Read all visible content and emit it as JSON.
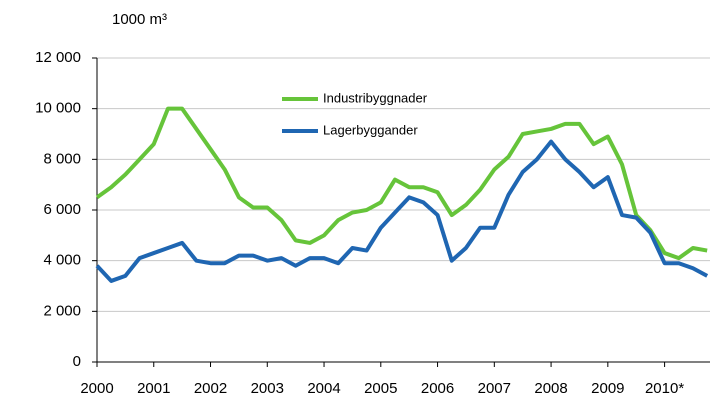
{
  "chart_data": {
    "type": "line",
    "y_unit_label": "1000 m³",
    "x": [
      2000,
      2000.25,
      2000.5,
      2000.75,
      2001,
      2001.25,
      2001.5,
      2001.75,
      2002,
      2002.25,
      2002.5,
      2002.75,
      2003,
      2003.25,
      2003.5,
      2003.75,
      2004,
      2004.25,
      2004.5,
      2004.75,
      2005,
      2005.25,
      2005.5,
      2005.75,
      2006,
      2006.25,
      2006.5,
      2006.75,
      2007,
      2007.25,
      2007.5,
      2007.75,
      2008,
      2008.25,
      2008.5,
      2008.75,
      2009,
      2009.25,
      2009.5,
      2009.75,
      2010,
      2010.25,
      2010.5,
      2010.75
    ],
    "series": [
      {
        "name": "Industribyggnader",
        "color": "#66c43a",
        "values": [
          6500,
          6900,
          7400,
          8000,
          8600,
          10000,
          10000,
          9200,
          8400,
          7600,
          6500,
          6100,
          6100,
          5600,
          4800,
          4700,
          5000,
          5600,
          5900,
          6000,
          6300,
          7200,
          6900,
          6900,
          6700,
          5800,
          6200,
          6800,
          7600,
          8100,
          9000,
          9100,
          9200,
          9400,
          9400,
          8600,
          8900,
          7800,
          5800,
          5200,
          4300,
          4100,
          4500,
          4400
        ]
      },
      {
        "name": "Lagerbyggander",
        "color": "#1f66b2",
        "values": [
          3800,
          3200,
          3400,
          4100,
          4300,
          4500,
          4700,
          4000,
          3900,
          3900,
          4200,
          4200,
          4000,
          4100,
          3800,
          4100,
          4100,
          3900,
          4500,
          4400,
          5300,
          5900,
          6500,
          6300,
          5800,
          4000,
          4500,
          5300,
          5300,
          6600,
          7500,
          8000,
          8700,
          8000,
          7500,
          6900,
          7300,
          5800,
          5700,
          5100,
          3900,
          3900,
          3700,
          3400
        ]
      }
    ],
    "xlim": [
      2000,
      2010.8
    ],
    "xticks": [
      2000,
      2001,
      2002,
      2003,
      2004,
      2005,
      2006,
      2007,
      2008,
      2009,
      {
        "value": 2010,
        "label": "2010*"
      }
    ],
    "ylim": [
      0,
      12000
    ],
    "yticks": [
      0,
      {
        "value": 2000,
        "label": "2 000"
      },
      {
        "value": 4000,
        "label": "4 000"
      },
      {
        "value": 6000,
        "label": "6 000"
      },
      {
        "value": 8000,
        "label": "8 000"
      },
      {
        "value": 10000,
        "label": "10 000"
      },
      {
        "value": 12000,
        "label": "12 000"
      }
    ],
    "grid": true,
    "legend": "top-center"
  }
}
